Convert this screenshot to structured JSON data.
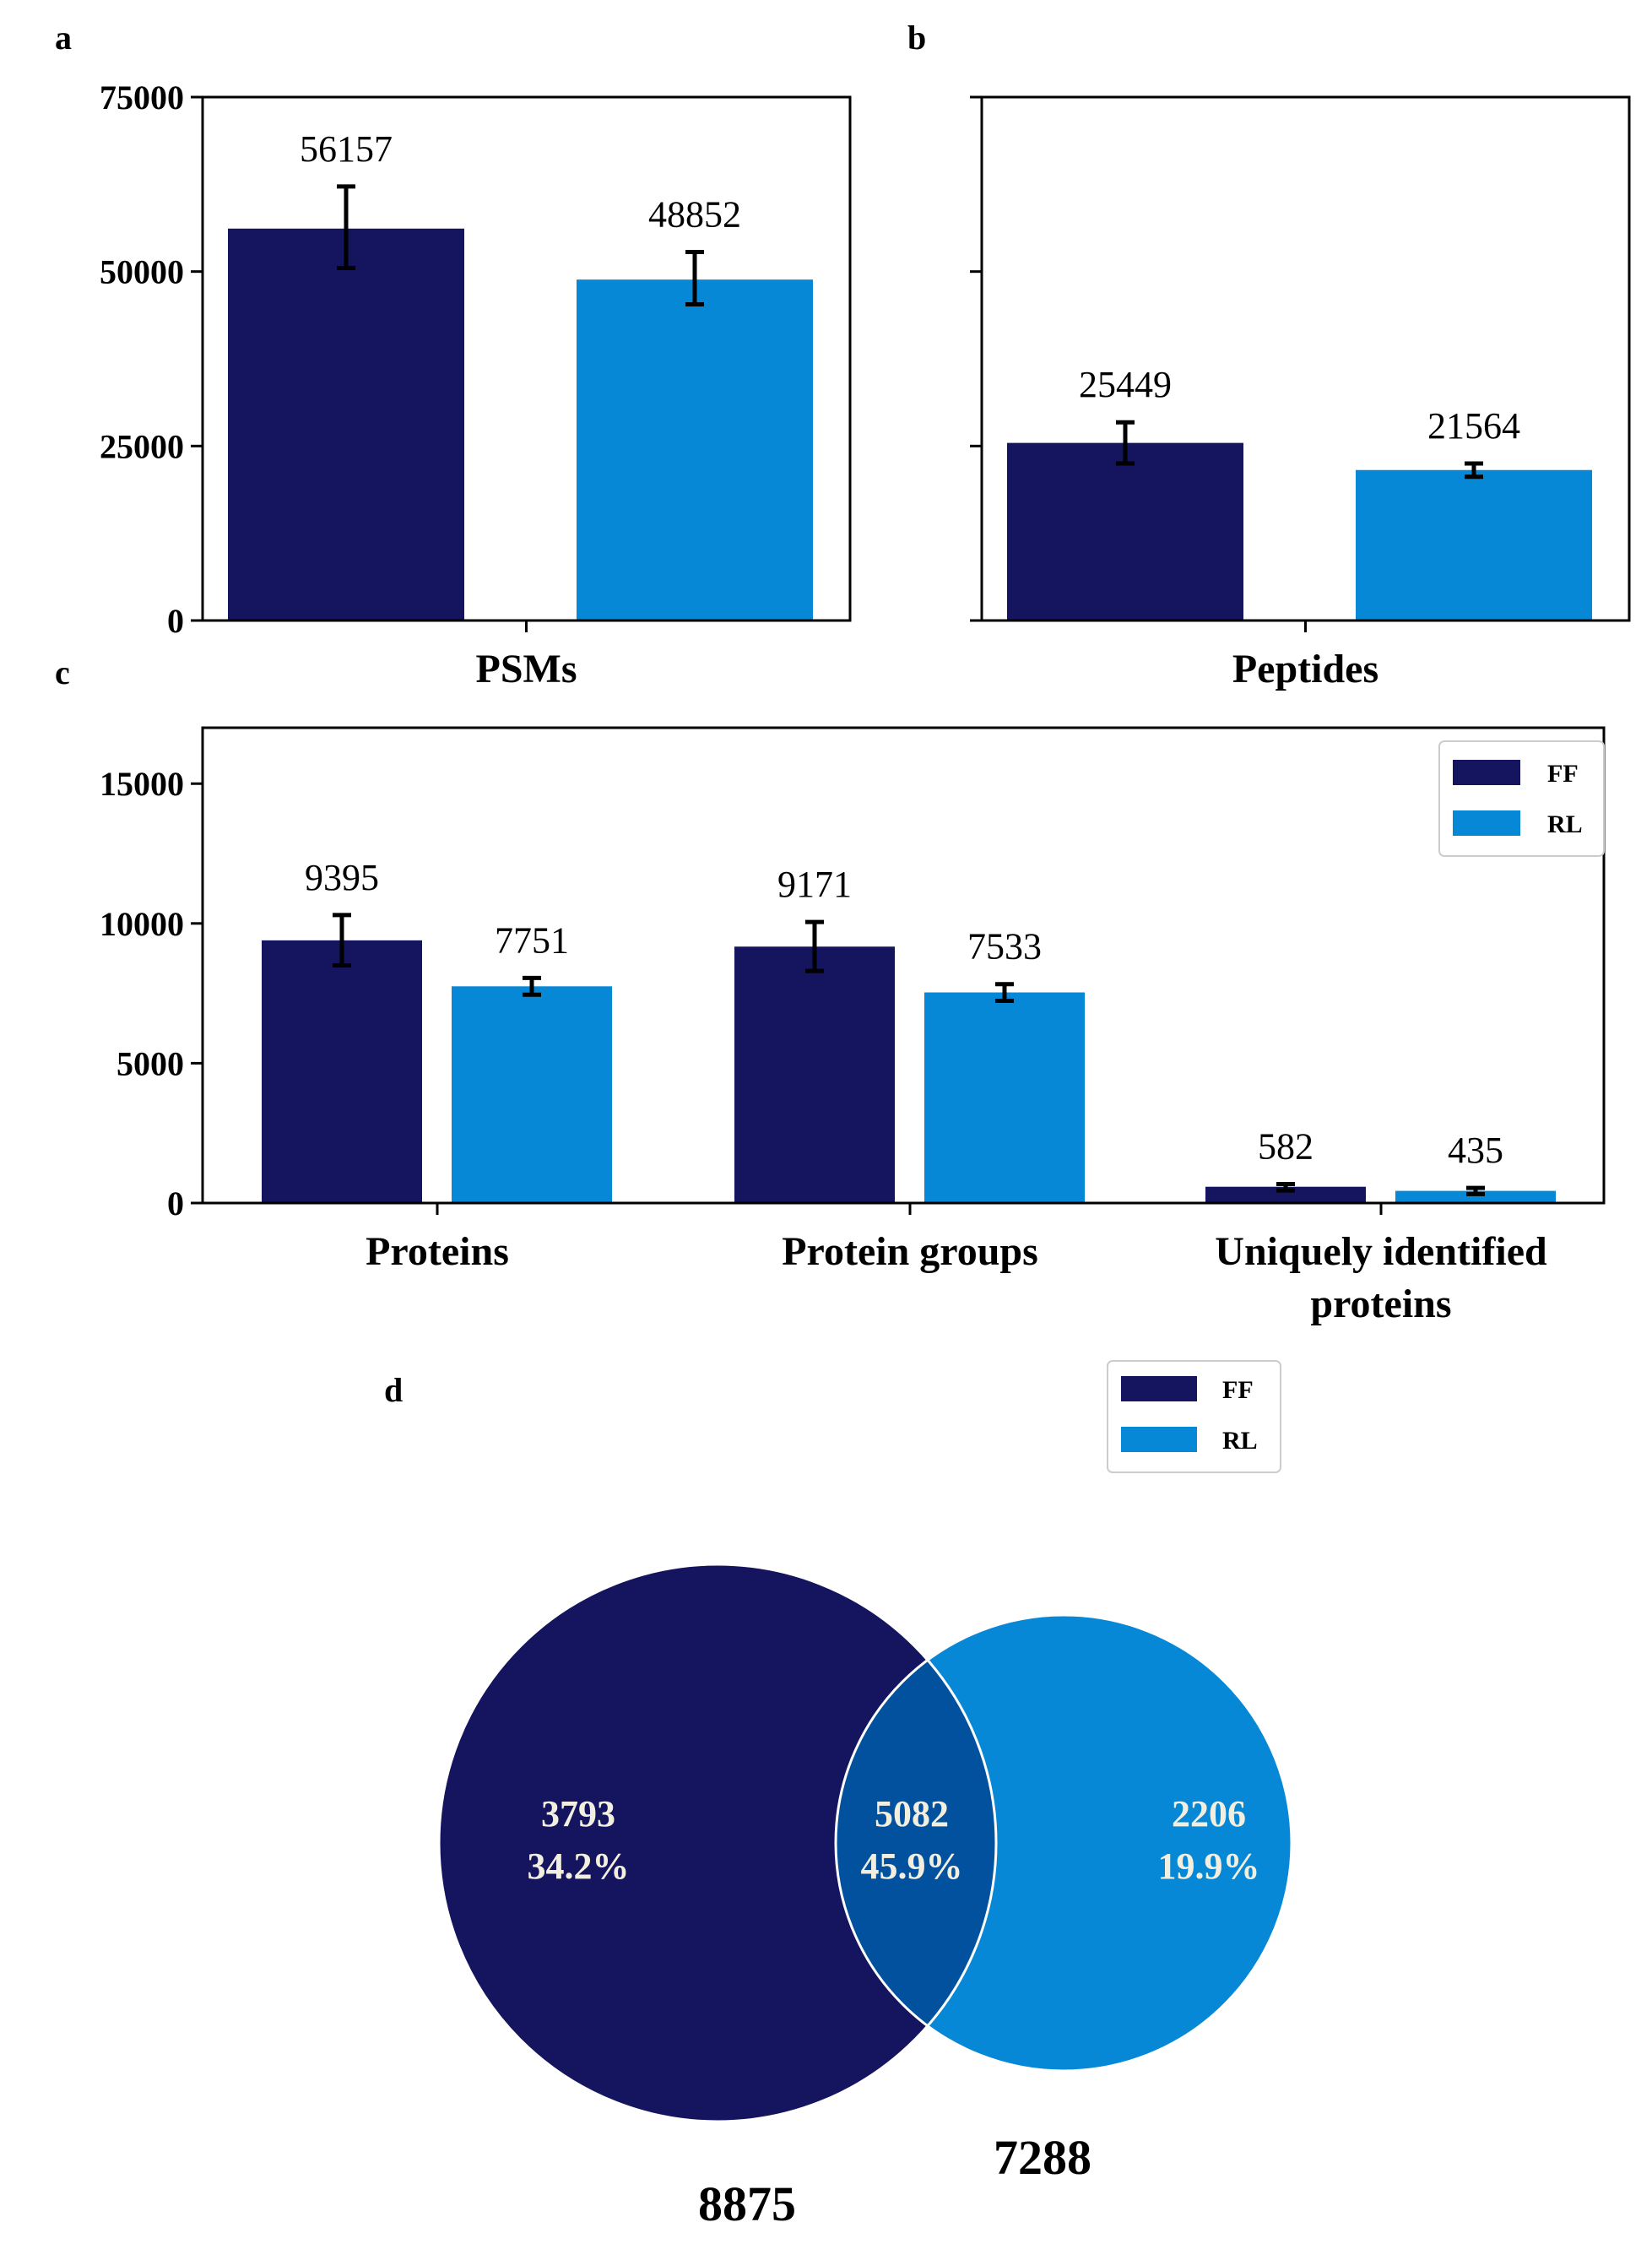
{
  "colors": {
    "FF": "#14145f",
    "RL": "#0688d6",
    "overlap": "#02519e"
  },
  "chart_data": [
    {
      "id": "a",
      "letter": "a",
      "type": "bar",
      "categories": [
        "PSMs"
      ],
      "series": [
        {
          "name": "FF",
          "values": [
            56157
          ],
          "err_low": [
            50500
          ],
          "err_high": [
            62200
          ]
        },
        {
          "name": "RL",
          "values": [
            48852
          ],
          "err_low": [
            45300
          ],
          "err_high": [
            52800
          ]
        }
      ],
      "value_labels": [
        "56157",
        "48852"
      ],
      "ylim": [
        0,
        75000
      ],
      "yticks": [
        0,
        25000,
        50000,
        75000
      ],
      "ytick_labels": [
        "0",
        "25000",
        "50000",
        "75000"
      ],
      "show_ytick_labels": true
    },
    {
      "id": "b",
      "letter": "b",
      "type": "bar",
      "categories": [
        "Peptides"
      ],
      "series": [
        {
          "name": "FF",
          "values": [
            25449
          ],
          "err_low": [
            22500
          ],
          "err_high": [
            28400
          ]
        },
        {
          "name": "RL",
          "values": [
            21564
          ],
          "err_low": [
            20600
          ],
          "err_high": [
            22500
          ]
        }
      ],
      "value_labels": [
        "25449",
        "21564"
      ],
      "ylim": [
        0,
        75000
      ],
      "yticks": [
        0,
        25000,
        50000,
        75000
      ],
      "ytick_labels": [
        "0",
        "25000",
        "50000",
        "75000"
      ],
      "show_ytick_labels": false
    },
    {
      "id": "c",
      "letter": "c",
      "type": "bar",
      "categories": [
        "Proteins",
        "Protein groups",
        "Uniquely identified|proteins"
      ],
      "series": [
        {
          "name": "FF",
          "values": [
            9395,
            9171,
            582
          ],
          "err_low": [
            8500,
            8300,
            450
          ],
          "err_high": [
            10300,
            10050,
            680
          ]
        },
        {
          "name": "RL",
          "values": [
            7751,
            7533,
            435
          ],
          "err_low": [
            7450,
            7230,
            320
          ],
          "err_high": [
            8050,
            7830,
            540
          ]
        }
      ],
      "value_labels": [
        "9395",
        "9171",
        "582",
        "7751",
        "7533",
        "435"
      ],
      "ylim": [
        0,
        17000
      ],
      "yticks": [
        0,
        5000,
        10000,
        15000
      ],
      "ytick_labels": [
        "0",
        "5000",
        "10000",
        "15000"
      ],
      "show_ytick_labels": true,
      "legend": [
        "FF",
        "RL"
      ],
      "legend_loc": "upper right"
    },
    {
      "id": "d",
      "letter": "d",
      "type": "venn",
      "sets": [
        "FF",
        "RL"
      ],
      "only_FF": {
        "count": "3793",
        "pct": "34.2%"
      },
      "both": {
        "count": "5082",
        "pct": "45.9%"
      },
      "only_RL": {
        "count": "2206",
        "pct": "19.9%"
      },
      "totals": {
        "FF": "8875",
        "RL": "7288"
      },
      "legend": [
        "FF",
        "RL"
      ]
    }
  ]
}
